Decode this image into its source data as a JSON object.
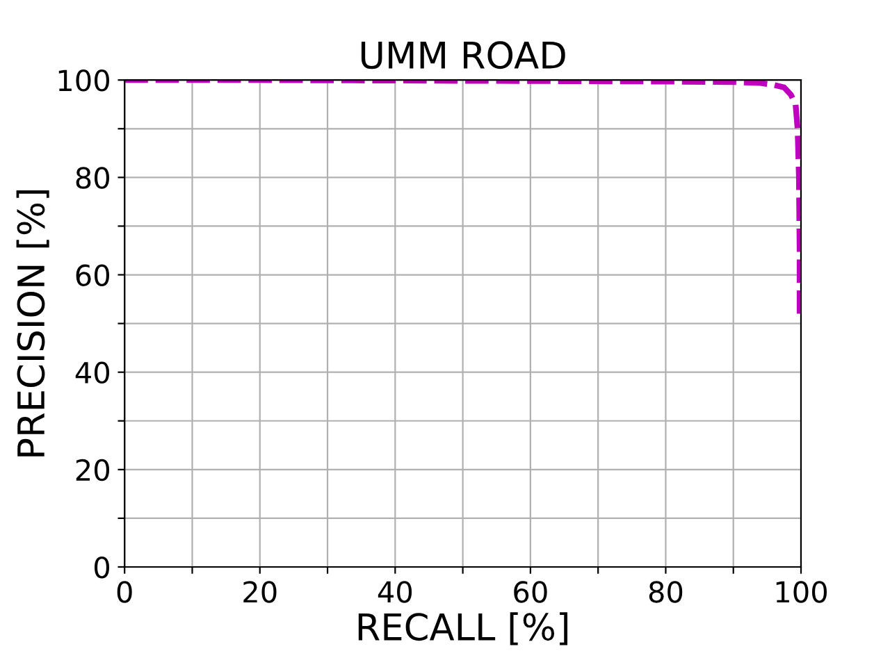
{
  "chart_data": {
    "type": "line",
    "title": "UMM ROAD",
    "xlabel": "RECALL [%]",
    "ylabel": "PRECISION [%]",
    "series": [
      {
        "color": "#bf00bf",
        "x": [
          0,
          20,
          40,
          60,
          80,
          90,
          94,
          96,
          97.5,
          98.5,
          99.2,
          99.5,
          99.7,
          99.8,
          99.8
        ],
        "values": [
          100,
          100,
          99.9,
          99.8,
          99.7,
          99.6,
          99.4,
          99,
          98.5,
          97,
          95,
          90,
          80,
          65,
          52
        ]
      }
    ],
    "xlim": [
      0,
      100
    ],
    "ylim": [
      0,
      100
    ],
    "xticks": [
      0,
      {
        "value": 10,
        "label": null
      },
      20,
      {
        "value": 30,
        "label": null
      },
      40,
      {
        "value": 50,
        "label": null
      },
      60,
      {
        "value": 70,
        "label": null
      },
      80,
      {
        "value": 90,
        "label": null
      },
      100
    ],
    "yticks": [
      0,
      {
        "value": 10,
        "label": null
      },
      20,
      {
        "value": 30,
        "label": null
      },
      40,
      {
        "value": 50,
        "label": null
      },
      60,
      {
        "value": 70,
        "label": null
      },
      80,
      {
        "value": 90,
        "label": null
      },
      100
    ],
    "grid": true,
    "line_style": "dashed",
    "marker": "none",
    "legend": false
  }
}
